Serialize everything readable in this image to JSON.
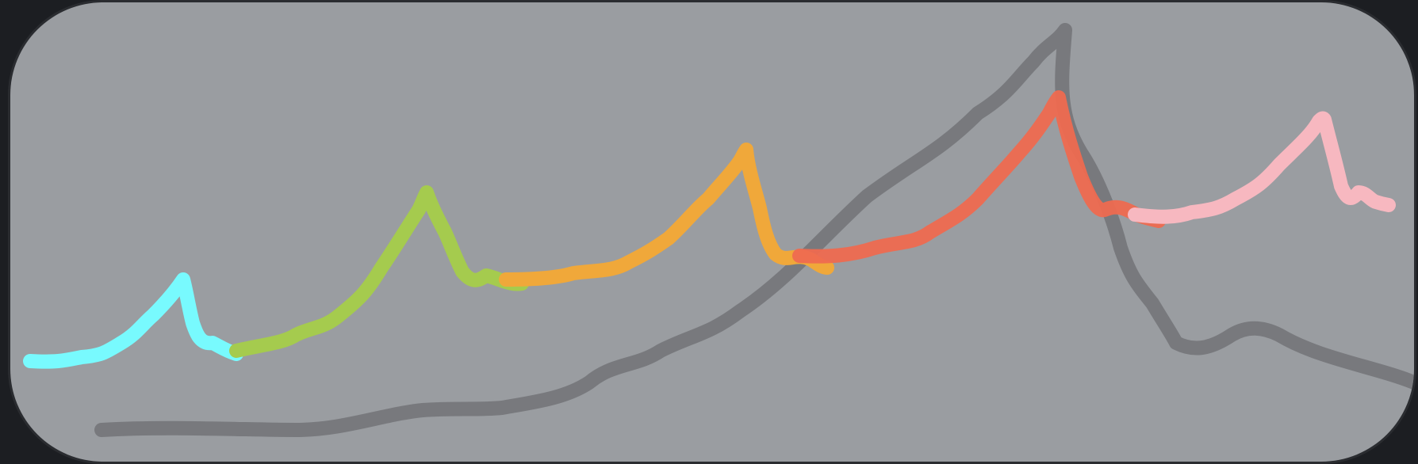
{
  "theme": {
    "page_background": "#1c1e22",
    "panel_background": "#9a9da1",
    "panel_border": "#2a2c30"
  },
  "strokes": [
    {
      "name": "gray-stroke",
      "color": "#6f7174",
      "opacity": 0.8
    },
    {
      "name": "cyan-stroke",
      "color": "#78fafe",
      "opacity": 1.0
    },
    {
      "name": "green-stroke",
      "color": "#a5cb4e",
      "opacity": 1.0
    },
    {
      "name": "orange-stroke",
      "color": "#f0a83a",
      "opacity": 1.0
    },
    {
      "name": "red-stroke",
      "color": "#ee6a50",
      "opacity": 0.95
    },
    {
      "name": "pink-stroke",
      "color": "#f7b8c0",
      "opacity": 1.0
    }
  ]
}
